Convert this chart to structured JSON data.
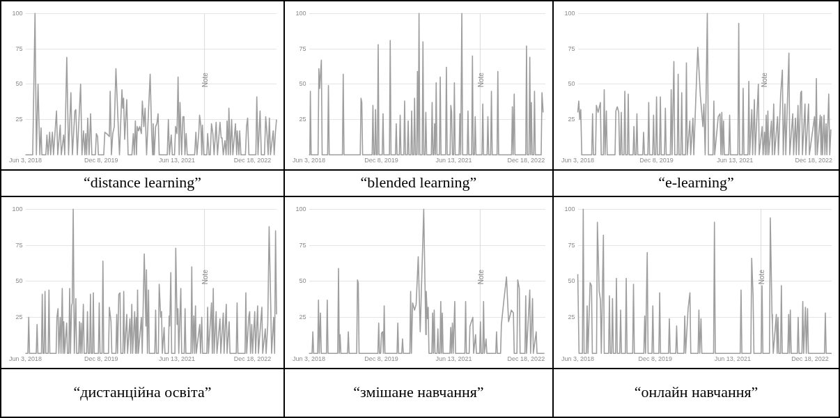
{
  "chart_data": [
    {
      "type": "line",
      "title": "“distance learning”",
      "color": "#9e9e9e",
      "marker": "none",
      "grid": "y",
      "xlim": [
        "2018-06-03",
        "2023-06-11"
      ],
      "ylim": [
        0,
        100
      ],
      "yticks": [
        25,
        50,
        75,
        100
      ],
      "xticks": [
        {
          "value": "2018-06-03",
          "label": "Jun 3, 2018"
        },
        {
          "value": "2019-12-08",
          "label": "Dec 8, 2019"
        },
        {
          "value": "2021-06-13",
          "label": "Jun 13, 2021"
        },
        {
          "value": "2022-12-18",
          "label": "Dec 18, 2022"
        }
      ],
      "ref_lines": [
        {
          "axis": "x",
          "value": "2022-01-01",
          "label": "Note"
        }
      ],
      "x": [
        "2018-06-03",
        "2018-07-26",
        "2018-08-12",
        "2018-08-22",
        "2018-09-03",
        "2018-09-16",
        "2018-09-25",
        "2018-10-01",
        "2018-10-30",
        "2018-11-07",
        "2018-11-15",
        "2018-11-27",
        "2018-12-04",
        "2018-12-17",
        "2018-12-25",
        "2019-01-16",
        "2019-01-25",
        "2019-02-12",
        "2019-02-20",
        "2019-03-09",
        "2019-03-17",
        "2019-04-01",
        "2019-04-14",
        "2019-05-01",
        "2019-05-12",
        "2019-05-30",
        "2019-06-06",
        "2019-06-17",
        "2019-07-11",
        "2019-07-21",
        "2019-08-01",
        "2019-08-11",
        "2019-08-17",
        "2019-08-24",
        "2019-09-01",
        "2019-09-11",
        "2019-09-22",
        "2019-10-01",
        "2019-10-27",
        "2019-11-03",
        "2019-11-12",
        "2019-11-18",
        "2019-12-27",
        "2020-01-04",
        "2020-01-17",
        "2020-02-06",
        "2020-02-12",
        "2020-02-21",
        "2020-03-02",
        "2020-03-13",
        "2020-03-25",
        "2020-04-11",
        "2020-04-20",
        "2020-05-08",
        "2020-05-14",
        "2020-05-20",
        "2020-05-28",
        "2020-06-12",
        "2020-06-22",
        "2020-07-20",
        "2020-07-30",
        "2020-08-06",
        "2020-08-14",
        "2020-08-22",
        "2020-08-28",
        "2020-09-06",
        "2020-09-15",
        "2020-09-27",
        "2020-10-04",
        "2020-10-15",
        "2020-10-24",
        "2020-11-04",
        "2020-11-30",
        "2020-12-11",
        "2020-12-18",
        "2020-12-22",
        "2020-12-30",
        "2021-01-09",
        "2021-01-18",
        "2021-01-27",
        "2021-02-04",
        "2021-04-04",
        "2021-04-12",
        "2021-04-20",
        "2021-05-03",
        "2021-05-11",
        "2021-05-27",
        "2021-06-04",
        "2021-06-14",
        "2021-06-22",
        "2021-06-30",
        "2021-07-06",
        "2021-07-18",
        "2021-07-27",
        "2021-08-04",
        "2021-08-11",
        "2021-08-20",
        "2021-08-28",
        "2021-10-21",
        "2021-10-30",
        "2021-11-07",
        "2021-11-20",
        "2021-11-26",
        "2021-12-06",
        "2021-12-12",
        "2021-12-17",
        "2021-12-27",
        "2022-01-18",
        "2022-01-24",
        "2022-02-03",
        "2022-02-12",
        "2022-02-21",
        "2022-03-03",
        "2022-03-12",
        "2022-03-27",
        "2022-04-06",
        "2022-04-24",
        "2022-05-03",
        "2022-05-09",
        "2022-05-18",
        "2022-05-30",
        "2022-06-08",
        "2022-06-15",
        "2022-06-24",
        "2022-06-28",
        "2022-07-09",
        "2022-07-18",
        "2022-07-27",
        "2022-08-15",
        "2022-08-24",
        "2022-08-28",
        "2022-09-09",
        "2022-09-15",
        "2022-09-24",
        "2022-10-27",
        "2022-11-04",
        "2022-11-12",
        "2022-11-21",
        "2023-01-11",
        "2023-01-18",
        "2023-01-27",
        "2023-02-11",
        "2023-02-20",
        "2023-03-15",
        "2023-03-24",
        "2023-04-03",
        "2023-04-11",
        "2023-04-20",
        "2023-04-28",
        "2023-05-18",
        "2023-05-25",
        "2023-06-03",
        "2023-06-11"
      ],
      "values": [
        0,
        0,
        100,
        0,
        50,
        0,
        19,
        0,
        0,
        14,
        0,
        16,
        0,
        16,
        0,
        31,
        0,
        21,
        0,
        14,
        0,
        69,
        0,
        44,
        0,
        31,
        32,
        0,
        50,
        0,
        17,
        0,
        15,
        0,
        26,
        0,
        29,
        0,
        0,
        15,
        13,
        0,
        0,
        16,
        15,
        13,
        45,
        0,
        15,
        20,
        61,
        20,
        0,
        46,
        33,
        40,
        11,
        39,
        0,
        0,
        15,
        0,
        24,
        0,
        20,
        17,
        20,
        15,
        38,
        20,
        33,
        0,
        57,
        15,
        0,
        22,
        0,
        20,
        22,
        29,
        0,
        0,
        25,
        0,
        14,
        0,
        0,
        20,
        15,
        55,
        0,
        37,
        0,
        27,
        27,
        0,
        15,
        0,
        0,
        16,
        0,
        15,
        28,
        20,
        0,
        21,
        0,
        0,
        15,
        0,
        0,
        22,
        15,
        0,
        23,
        0,
        23,
        12,
        12,
        0,
        10,
        0,
        24,
        0,
        33,
        0,
        25,
        0,
        22,
        0,
        17,
        0,
        17,
        0,
        0,
        20,
        26,
        0,
        0,
        41,
        0,
        31,
        0,
        0,
        27,
        14,
        0,
        26,
        0,
        17,
        0,
        16,
        25
      ]
    },
    {
      "type": "line",
      "title": "“blended learning”",
      "color": "#9e9e9e",
      "marker": "none",
      "grid": "y",
      "xlim": [
        "2018-06-03",
        "2023-05-14"
      ],
      "ylim": [
        0,
        100
      ],
      "yticks": [
        25,
        50,
        75,
        100
      ],
      "xticks": [
        {
          "value": "2018-06-03",
          "label": "Jun 3, 2018"
        },
        {
          "value": "2019-12-08",
          "label": "Dec 8, 2019"
        },
        {
          "value": "2021-06-13",
          "label": "Jun 13, 2021"
        },
        {
          "value": "2022-12-18",
          "label": "Dec 18, 2022"
        }
      ],
      "ref_lines": [
        {
          "axis": "x",
          "value": "2022-01-01",
          "label": "Note"
        }
      ],
      "x": [
        "2018-06-03",
        "2018-06-10",
        "2018-06-14",
        "2018-06-20",
        "2018-08-12",
        "2018-08-18",
        "2018-08-24",
        "2018-09-06",
        "2018-09-12",
        "2018-10-24",
        "2018-10-30",
        "2018-11-05",
        "2019-02-14",
        "2019-02-20",
        "2019-02-26",
        "2019-06-30",
        "2019-07-06",
        "2019-07-12",
        "2019-07-18",
        "2019-09-29",
        "2019-10-05",
        "2019-10-11",
        "2019-10-19",
        "2019-10-25",
        "2019-10-31",
        "2019-11-08",
        "2019-11-14",
        "2019-11-20",
        "2019-12-15",
        "2019-12-21",
        "2019-12-27",
        "2020-02-08",
        "2020-02-14",
        "2020-02-20",
        "2020-03-25",
        "2020-03-31",
        "2020-04-06",
        "2020-04-24",
        "2020-04-30",
        "2020-05-06",
        "2020-05-28",
        "2020-06-03",
        "2020-06-09",
        "2020-06-24",
        "2020-06-30",
        "2020-07-06",
        "2020-07-21",
        "2020-07-27",
        "2020-08-02",
        "2020-08-12",
        "2020-08-18",
        "2020-08-24",
        "2020-09-03",
        "2020-09-09",
        "2020-09-15",
        "2020-09-21",
        "2020-09-27",
        "2020-10-15",
        "2020-10-21",
        "2020-10-27",
        "2020-11-06",
        "2020-11-12",
        "2020-11-18",
        "2020-12-24",
        "2020-12-30",
        "2021-01-05",
        "2021-01-12",
        "2021-01-18",
        "2021-01-24",
        "2021-01-30",
        "2021-02-05",
        "2021-02-24",
        "2021-03-02",
        "2021-03-08",
        "2021-04-12",
        "2021-04-18",
        "2021-04-24",
        "2021-05-16",
        "2021-05-22",
        "2021-05-28",
        "2021-06-03",
        "2021-06-12",
        "2021-06-18",
        "2021-06-24",
        "2021-07-24",
        "2021-07-30",
        "2021-08-05",
        "2021-08-14",
        "2021-08-20",
        "2021-09-24",
        "2021-09-30",
        "2021-10-06",
        "2021-10-28",
        "2021-11-03",
        "2021-11-09",
        "2021-11-18",
        "2021-11-24",
        "2021-11-30",
        "2022-01-15",
        "2022-01-21",
        "2022-01-27",
        "2022-02-23",
        "2022-03-01",
        "2022-03-07",
        "2022-03-22",
        "2022-03-28",
        "2022-04-03",
        "2022-05-10",
        "2022-05-16",
        "2022-05-22",
        "2022-08-29",
        "2022-09-04",
        "2022-09-10",
        "2022-09-18",
        "2022-09-24",
        "2022-12-15",
        "2022-12-21",
        "2022-12-27",
        "2023-01-09",
        "2023-01-15",
        "2023-01-21",
        "2023-01-27",
        "2023-02-02",
        "2023-02-14",
        "2023-02-20",
        "2023-02-26",
        "2023-04-12",
        "2023-04-18",
        "2023-04-27"
      ],
      "values": [
        0,
        0,
        45,
        0,
        0,
        61,
        47,
        67,
        0,
        0,
        49,
        0,
        0,
        57,
        0,
        0,
        40,
        37,
        0,
        0,
        35,
        0,
        0,
        32,
        0,
        0,
        78,
        0,
        0,
        29,
        0,
        0,
        81,
        0,
        0,
        22,
        0,
        0,
        28,
        0,
        0,
        38,
        0,
        0,
        24,
        0,
        0,
        31,
        0,
        0,
        40,
        0,
        0,
        59,
        0,
        100,
        0,
        0,
        80,
        0,
        0,
        30,
        0,
        0,
        37,
        0,
        0,
        22,
        0,
        51,
        0,
        0,
        55,
        0,
        0,
        62,
        0,
        0,
        35,
        30,
        0,
        0,
        51,
        0,
        0,
        29,
        0,
        100,
        0,
        0,
        31,
        0,
        0,
        70,
        0,
        0,
        27,
        0,
        0,
        36,
        0,
        0,
        27,
        0,
        0,
        45,
        0,
        0,
        59,
        0,
        0,
        34,
        0,
        43,
        0,
        0,
        77,
        0,
        0,
        69,
        0,
        37,
        0,
        0,
        45,
        0,
        0,
        44,
        30
      ]
    },
    {
      "type": "line",
      "title": "“e-learning”",
      "color": "#9e9e9e",
      "marker": "none",
      "grid": "y",
      "xlim": [
        "2018-06-03",
        "2023-04-23"
      ],
      "ylim": [
        0,
        100
      ],
      "yticks": [
        25,
        50,
        75,
        100
      ],
      "xticks": [
        {
          "value": "2018-06-03",
          "label": "Jun 3, 2018"
        },
        {
          "value": "2019-12-08",
          "label": "Dec 8, 2019"
        },
        {
          "value": "2021-06-13",
          "label": "Jun 13, 2021"
        },
        {
          "value": "2022-12-18",
          "label": "Dec 18, 2022"
        }
      ],
      "ref_lines": [
        {
          "axis": "x",
          "value": "2022-01-01",
          "label": "Note"
        }
      ],
      "x": [
        "2018-06-03",
        "2018-06-10",
        "2018-06-17",
        "2018-06-24",
        "2018-07-01",
        "2018-09-09",
        "2018-09-15",
        "2018-09-21",
        "2018-10-06",
        "2018-10-12",
        "2018-10-24",
        "2018-11-09",
        "2018-11-15",
        "2018-11-30",
        "2018-12-06",
        "2018-12-12",
        "2018-12-21",
        "2018-12-27",
        "2019-02-20",
        "2019-02-26",
        "2019-03-08",
        "2019-03-18",
        "2019-03-24",
        "2019-03-30",
        "2019-04-05",
        "2019-04-11",
        "2019-04-24",
        "2019-04-30",
        "2019-05-06",
        "2019-05-18",
        "2019-05-24",
        "2019-05-30",
        "2019-06-27",
        "2019-07-03",
        "2019-07-09",
        "2019-07-18",
        "2019-07-24",
        "2019-07-30",
        "2019-09-03",
        "2019-09-09",
        "2019-09-15",
        "2019-10-09",
        "2019-10-15",
        "2019-10-21",
        "2019-11-12",
        "2019-11-18",
        "2019-11-24",
        "2019-12-03",
        "2019-12-09",
        "2019-12-15",
        "2019-12-30",
        "2020-01-05",
        "2020-01-11",
        "2020-02-03",
        "2020-02-09",
        "2020-02-15",
        "2020-03-15",
        "2020-03-21",
        "2020-03-27",
        "2020-04-09",
        "2020-04-15",
        "2020-05-03",
        "2020-05-09",
        "2020-05-15",
        "2020-05-28",
        "2020-06-03",
        "2020-06-09",
        "2020-06-30",
        "2020-07-06",
        "2020-07-12",
        "2020-07-30",
        "2020-08-05",
        "2020-08-21",
        "2020-08-27",
        "2020-09-12",
        "2020-09-24",
        "2020-10-12",
        "2020-10-30",
        "2020-11-06",
        "2020-11-15",
        "2020-11-30",
        "2020-12-08",
        "2021-01-09",
        "2021-01-15",
        "2021-01-21",
        "2021-02-15",
        "2021-02-27",
        "2021-03-06",
        "2021-03-12",
        "2021-03-18",
        "2021-03-24",
        "2021-03-30",
        "2021-04-30",
        "2021-05-06",
        "2021-05-12",
        "2021-07-03",
        "2021-07-09",
        "2021-07-15",
        "2021-08-03",
        "2021-08-09",
        "2021-08-15",
        "2021-09-12",
        "2021-09-18",
        "2021-09-24",
        "2021-10-09",
        "2021-10-15",
        "2021-10-27",
        "2021-11-02",
        "2021-11-24",
        "2021-11-30",
        "2021-12-21",
        "2021-12-27",
        "2022-01-06",
        "2022-01-12",
        "2022-01-18",
        "2022-01-24",
        "2022-01-30",
        "2022-02-05",
        "2022-02-24",
        "2022-03-02",
        "2022-03-12",
        "2022-03-18",
        "2022-04-08",
        "2022-04-14",
        "2022-04-30",
        "2022-05-12",
        "2022-05-18",
        "2022-05-30",
        "2022-06-05",
        "2022-06-27",
        "2022-07-03",
        "2022-07-24",
        "2022-07-30",
        "2022-08-12",
        "2022-08-18",
        "2022-08-30",
        "2022-09-05",
        "2022-09-18",
        "2022-09-24",
        "2022-09-30",
        "2022-10-18",
        "2022-10-24",
        "2022-11-12",
        "2022-11-18",
        "2022-12-24",
        "2022-12-30",
        "2023-01-06",
        "2023-01-12",
        "2023-02-02",
        "2023-02-08",
        "2023-02-12",
        "2023-02-18",
        "2023-03-01",
        "2023-03-07",
        "2023-03-15",
        "2023-03-21",
        "2023-04-03",
        "2023-04-10",
        "2023-04-18"
      ],
      "values": [
        30,
        38,
        25,
        32,
        0,
        0,
        29,
        0,
        0,
        35,
        30,
        37,
        0,
        0,
        46,
        0,
        31,
        0,
        0,
        31,
        34,
        30,
        0,
        0,
        30,
        0,
        0,
        45,
        0,
        0,
        43,
        0,
        0,
        20,
        0,
        0,
        29,
        0,
        0,
        16,
        0,
        0,
        37,
        0,
        0,
        28,
        0,
        0,
        41,
        0,
        0,
        41,
        0,
        0,
        33,
        0,
        0,
        46,
        0,
        66,
        0,
        0,
        57,
        0,
        0,
        44,
        0,
        0,
        65,
        0,
        24,
        0,
        26,
        0,
        45,
        76,
        42,
        20,
        36,
        0,
        100,
        0,
        0,
        38,
        0,
        27,
        29,
        0,
        30,
        0,
        24,
        0,
        0,
        28,
        0,
        0,
        93,
        0,
        0,
        47,
        0,
        0,
        52,
        0,
        32,
        0,
        39,
        0,
        50,
        0,
        20,
        0,
        16,
        0,
        28,
        0,
        31,
        0,
        24,
        0,
        36,
        0,
        27,
        0,
        43,
        60,
        0,
        36,
        0,
        72,
        0,
        29,
        0,
        26,
        0,
        35,
        0,
        44,
        45,
        0,
        36,
        0,
        36,
        0,
        27,
        0,
        54,
        0,
        28,
        0,
        27,
        0,
        28,
        0,
        22,
        0,
        43,
        0,
        18
      ]
    },
    {
      "type": "line",
      "title": "“дистанційна освіта”",
      "color": "#9e9e9e",
      "marker": "none",
      "grid": "y",
      "xlim": [
        "2018-06-03",
        "2023-06-11"
      ],
      "ylim": [
        0,
        100
      ],
      "yticks": [
        25,
        50,
        75,
        100
      ],
      "xticks": [
        {
          "value": "2018-06-03",
          "label": "Jun 3, 2018"
        },
        {
          "value": "2019-12-08",
          "label": "Dec 8, 2019"
        },
        {
          "value": "2021-06-13",
          "label": "Jun 13, 2021"
        },
        {
          "value": "2022-12-18",
          "label": "Dec 18, 2022"
        }
      ],
      "ref_lines": [
        {
          "axis": "x",
          "value": "2022-01-01",
          "label": "Note"
        }
      ],
      "x": [
        "2018-06-03",
        "2018-06-21",
        "2018-06-27",
        "2018-07-03",
        "2018-08-21",
        "2018-08-27",
        "2018-09-02",
        "2018-09-28",
        "2018-10-04",
        "2018-10-10",
        "2018-10-18",
        "2018-10-24",
        "2018-10-30",
        "2018-11-16",
        "2018-11-22",
        "2018-11-28",
        "2019-01-13",
        "2019-01-19",
        "2019-01-27",
        "2019-02-02",
        "2019-02-12",
        "2019-02-18",
        "2019-02-27",
        "2019-03-05",
        "2019-03-10",
        "2019-03-16",
        "2019-03-31",
        "2019-04-06",
        "2019-04-16",
        "2019-04-22",
        "2019-04-28",
        "2019-05-06",
        "2019-05-11",
        "2019-05-18",
        "2019-05-26",
        "2019-06-06",
        "2019-06-12",
        "2019-06-27",
        "2019-07-03",
        "2019-07-09",
        "2019-07-15",
        "2019-07-21",
        "2019-07-31",
        "2019-08-06",
        "2019-08-24",
        "2019-08-30",
        "2019-09-05",
        "2019-09-15",
        "2019-09-21",
        "2019-09-27",
        "2019-10-06",
        "2019-10-12",
        "2019-10-18",
        "2019-11-18",
        "2019-11-24",
        "2019-11-30",
        "2019-12-15",
        "2019-12-21",
        "2019-12-27",
        "2020-01-31",
        "2020-02-06",
        "2020-02-18",
        "2020-02-24",
        "2020-03-25",
        "2020-03-31",
        "2020-04-06",
        "2020-04-15",
        "2020-04-24",
        "2020-04-30",
        "2020-05-15",
        "2020-05-21",
        "2020-05-27",
        "2020-06-12",
        "2020-06-18",
        "2020-07-05",
        "2020-07-11",
        "2020-07-19",
        "2020-07-25",
        "2020-08-09",
        "2020-08-15",
        "2020-08-21",
        "2020-08-25",
        "2020-08-30",
        "2020-09-05",
        "2020-09-27",
        "2020-10-03",
        "2020-10-18",
        "2020-10-30",
        "2020-11-03",
        "2020-11-10",
        "2020-11-18",
        "2020-11-24",
        "2021-01-03",
        "2021-01-09",
        "2021-01-15",
        "2021-01-29",
        "2021-02-04",
        "2021-02-15",
        "2021-02-21",
        "2021-02-27",
        "2021-03-12",
        "2021-03-18",
        "2021-04-12",
        "2021-04-18",
        "2021-04-22",
        "2021-04-30",
        "2021-05-06",
        "2021-05-30",
        "2021-06-05",
        "2021-06-15",
        "2021-06-21",
        "2021-06-27",
        "2021-07-12",
        "2021-07-18",
        "2021-08-06",
        "2021-08-12",
        "2021-08-18",
        "2021-09-24",
        "2021-09-30",
        "2021-10-06",
        "2021-10-15",
        "2021-10-21",
        "2021-10-27",
        "2021-11-02",
        "2021-11-27",
        "2021-12-03",
        "2021-12-12",
        "2021-12-18",
        "2022-01-18",
        "2022-01-24",
        "2022-01-30",
        "2022-02-21",
        "2022-02-27",
        "2022-03-06",
        "2022-03-12",
        "2022-03-27",
        "2022-04-02",
        "2022-04-24",
        "2022-04-30",
        "2022-05-18",
        "2022-05-24",
        "2022-06-09",
        "2022-06-15",
        "2022-06-30",
        "2022-07-06",
        "2022-08-21",
        "2022-08-27",
        "2022-09-02",
        "2022-10-24",
        "2022-10-30",
        "2022-11-05",
        "2022-11-21",
        "2022-11-27",
        "2022-12-03",
        "2022-12-12",
        "2022-12-18",
        "2023-01-03",
        "2023-01-09",
        "2023-01-24",
        "2023-01-30",
        "2023-02-24",
        "2023-03-02",
        "2023-03-21",
        "2023-03-27",
        "2023-04-08",
        "2023-04-18",
        "2023-04-30",
        "2023-05-06",
        "2023-05-21",
        "2023-05-28",
        "2023-06-04",
        "2023-06-11"
      ],
      "values": [
        0,
        0,
        25,
        0,
        0,
        20,
        0,
        0,
        41,
        0,
        0,
        43,
        0,
        0,
        44,
        0,
        0,
        25,
        31,
        0,
        25,
        0,
        45,
        0,
        22,
        0,
        21,
        0,
        0,
        45,
        0,
        33,
        35,
        100,
        0,
        38,
        0,
        0,
        22,
        0,
        21,
        0,
        34,
        0,
        0,
        29,
        0,
        0,
        41,
        0,
        0,
        42,
        0,
        0,
        35,
        0,
        0,
        64,
        0,
        0,
        32,
        22,
        0,
        0,
        27,
        0,
        41,
        42,
        0,
        0,
        43,
        0,
        27,
        0,
        24,
        0,
        34,
        0,
        29,
        0,
        25,
        0,
        44,
        0,
        25,
        0,
        69,
        19,
        58,
        0,
        44,
        0,
        0,
        30,
        0,
        0,
        48,
        25,
        29,
        0,
        18,
        0,
        0,
        26,
        19,
        56,
        0,
        0,
        73,
        20,
        31,
        0,
        45,
        0,
        0,
        31,
        0,
        0,
        60,
        0,
        26,
        0,
        33,
        0,
        20,
        0,
        25,
        0,
        0,
        32,
        0,
        35,
        0,
        45,
        0,
        29,
        0,
        24,
        0,
        28,
        0,
        34,
        0,
        22,
        0,
        0,
        35,
        0,
        0,
        42,
        0,
        26,
        29,
        0,
        20,
        0,
        29,
        0,
        33,
        0,
        32,
        0,
        17,
        0,
        20,
        88,
        32,
        0,
        25,
        0,
        85,
        27
      ]
    },
    {
      "type": "line",
      "title": "“змішане навчання”",
      "color": "#9e9e9e",
      "marker": "none",
      "grid": "y",
      "xlim": [
        "2018-06-03",
        "2023-05-14"
      ],
      "ylim": [
        0,
        100
      ],
      "yticks": [
        25,
        50,
        75,
        100
      ],
      "xticks": [
        {
          "value": "2018-06-03",
          "label": "Jun 3, 2018"
        },
        {
          "value": "2019-12-08",
          "label": "Dec 8, 2019"
        },
        {
          "value": "2021-06-13",
          "label": "Jun 13, 2021"
        },
        {
          "value": "2022-12-18",
          "label": "Dec 18, 2022"
        }
      ],
      "ref_lines": [
        {
          "axis": "x",
          "value": "2022-01-01",
          "label": "Note"
        }
      ],
      "x": [
        "2018-06-03",
        "2018-06-27",
        "2018-07-03",
        "2018-07-09",
        "2018-08-09",
        "2018-08-15",
        "2018-08-21",
        "2018-08-30",
        "2018-09-05",
        "2018-10-15",
        "2018-10-21",
        "2018-10-27",
        "2019-01-09",
        "2019-01-15",
        "2019-01-21",
        "2019-01-27",
        "2019-02-02",
        "2019-03-25",
        "2019-03-31",
        "2019-04-06",
        "2019-06-03",
        "2019-06-09",
        "2019-06-15",
        "2019-06-21",
        "2019-11-12",
        "2019-11-18",
        "2019-11-24",
        "2019-12-03",
        "2019-12-09",
        "2019-12-18",
        "2019-12-24",
        "2019-12-30",
        "2020-01-05",
        "2020-04-06",
        "2020-04-12",
        "2020-04-18",
        "2020-05-12",
        "2020-05-18",
        "2020-05-24",
        "2020-07-13",
        "2020-07-19",
        "2020-07-25",
        "2020-08-03",
        "2020-08-18",
        "2020-08-30",
        "2020-09-15",
        "2020-09-30",
        "2020-10-27",
        "2020-11-12",
        "2020-11-15",
        "2020-11-24",
        "2020-11-30",
        "2020-12-06",
        "2020-12-28",
        "2021-01-03",
        "2021-01-09",
        "2021-01-15",
        "2021-01-21",
        "2021-02-06",
        "2021-02-12",
        "2021-02-18",
        "2021-02-28",
        "2021-03-06",
        "2021-03-12",
        "2021-03-18",
        "2021-03-24",
        "2021-05-15",
        "2021-05-21",
        "2021-05-27",
        "2021-06-03",
        "2021-06-09",
        "2021-06-21",
        "2021-06-27",
        "2021-09-06",
        "2021-09-12",
        "2021-09-18",
        "2021-10-09",
        "2021-10-15",
        "2021-11-06",
        "2021-11-12",
        "2021-11-27",
        "2021-12-03",
        "2021-12-28",
        "2022-01-03",
        "2022-01-09",
        "2022-01-21",
        "2022-01-27",
        "2022-02-02",
        "2022-02-15",
        "2022-02-21",
        "2022-04-30",
        "2022-05-06",
        "2022-05-12",
        "2022-06-06",
        "2022-06-12",
        "2022-06-30",
        "2022-07-21",
        "2022-08-06",
        "2022-08-27",
        "2022-09-12",
        "2022-09-18",
        "2022-10-09",
        "2022-10-15",
        "2022-10-27",
        "2022-11-02",
        "2022-12-09",
        "2022-12-15",
        "2022-12-21",
        "2023-01-15",
        "2023-01-21",
        "2023-02-05",
        "2023-02-11",
        "2023-03-05",
        "2023-03-11",
        "2023-05-07"
      ],
      "values": [
        0,
        0,
        15,
        0,
        0,
        37,
        0,
        28,
        0,
        0,
        37,
        0,
        0,
        59,
        0,
        13,
        0,
        0,
        15,
        0,
        0,
        51,
        49,
        0,
        0,
        21,
        0,
        0,
        14,
        15,
        0,
        33,
        0,
        0,
        21,
        0,
        0,
        10,
        0,
        0,
        43,
        0,
        35,
        30,
        34,
        67,
        15,
        100,
        13,
        43,
        24,
        32,
        0,
        0,
        28,
        0,
        30,
        0,
        0,
        17,
        0,
        0,
        36,
        0,
        28,
        0,
        0,
        18,
        0,
        21,
        0,
        36,
        0,
        0,
        36,
        0,
        0,
        19,
        25,
        0,
        13,
        0,
        0,
        22,
        0,
        0,
        36,
        0,
        10,
        0,
        0,
        15,
        0,
        0,
        20,
        36,
        53,
        22,
        30,
        28,
        0,
        0,
        51,
        45,
        0,
        0,
        40,
        0,
        44,
        0,
        38,
        0,
        15,
        0,
        0
      ]
    },
    {
      "type": "line",
      "title": "“онлайн навчання”",
      "color": "#9e9e9e",
      "marker": "none",
      "grid": "y",
      "xlim": [
        "2018-06-03",
        "2023-05-21"
      ],
      "ylim": [
        0,
        100
      ],
      "yticks": [
        25,
        50,
        75,
        100
      ],
      "xticks": [
        {
          "value": "2018-06-03",
          "label": "Jun 3, 2018"
        },
        {
          "value": "2019-12-08",
          "label": "Dec 8, 2019"
        },
        {
          "value": "2021-06-13",
          "label": "Jun 13, 2021"
        },
        {
          "value": "2022-12-18",
          "label": "Dec 18, 2022"
        }
      ],
      "ref_lines": [
        {
          "axis": "x",
          "value": "2022-01-01",
          "label": "Note"
        }
      ],
      "x": [
        "2018-06-03",
        "2018-06-12",
        "2018-07-06",
        "2018-07-12",
        "2018-07-18",
        "2018-08-03",
        "2018-08-09",
        "2018-08-15",
        "2018-08-30",
        "2018-09-09",
        "2018-09-15",
        "2018-10-15",
        "2018-10-21",
        "2018-11-03",
        "2018-11-12",
        "2018-11-18",
        "2018-12-03",
        "2018-12-09",
        "2019-01-09",
        "2019-01-15",
        "2019-01-21",
        "2019-01-31",
        "2019-02-06",
        "2019-02-12",
        "2019-02-28",
        "2019-03-06",
        "2019-03-12",
        "2019-03-30",
        "2019-04-05",
        "2019-04-11",
        "2019-05-09",
        "2019-05-15",
        "2019-05-21",
        "2019-06-30",
        "2019-07-06",
        "2019-07-12",
        "2019-09-18",
        "2019-09-24",
        "2019-09-30",
        "2019-10-12",
        "2019-10-18",
        "2019-11-15",
        "2019-11-21",
        "2019-11-27",
        "2020-01-03",
        "2020-01-09",
        "2020-01-15",
        "2020-03-12",
        "2020-03-18",
        "2020-03-24",
        "2020-05-03",
        "2020-05-09",
        "2020-05-15",
        "2020-06-30",
        "2020-07-06",
        "2020-07-12",
        "2020-07-30",
        "2020-08-12",
        "2020-08-18",
        "2020-10-09",
        "2020-10-15",
        "2020-10-21",
        "2020-10-30",
        "2020-11-05",
        "2021-01-28",
        "2021-02-03",
        "2021-02-09",
        "2021-08-06",
        "2021-08-12",
        "2021-08-18",
        "2021-10-21",
        "2021-10-27",
        "2021-11-06",
        "2021-11-12",
        "2022-01-03",
        "2022-01-09",
        "2022-01-15",
        "2022-03-03",
        "2022-03-09",
        "2022-03-21",
        "2022-03-24",
        "2022-03-30",
        "2022-04-21",
        "2022-04-27",
        "2022-05-03",
        "2022-05-09",
        "2022-05-21",
        "2022-05-27",
        "2022-06-02",
        "2022-07-12",
        "2022-07-18",
        "2022-07-24",
        "2022-07-30",
        "2022-08-05",
        "2022-09-18",
        "2022-09-24",
        "2022-09-30",
        "2022-10-21",
        "2022-10-27",
        "2022-11-02",
        "2022-11-15",
        "2022-11-21",
        "2022-11-30",
        "2022-12-06",
        "2023-03-31",
        "2023-04-06",
        "2023-04-12",
        "2023-05-21"
      ],
      "values": [
        55,
        0,
        0,
        100,
        0,
        0,
        33,
        0,
        49,
        47,
        0,
        0,
        91,
        43,
        37,
        0,
        82,
        0,
        0,
        40,
        0,
        0,
        38,
        0,
        0,
        52,
        0,
        0,
        30,
        0,
        0,
        52,
        0,
        0,
        48,
        0,
        0,
        26,
        0,
        70,
        0,
        0,
        33,
        0,
        0,
        42,
        0,
        0,
        24,
        0,
        0,
        19,
        0,
        0,
        26,
        0,
        31,
        42,
        0,
        0,
        30,
        0,
        24,
        0,
        0,
        91,
        0,
        0,
        44,
        0,
        0,
        66,
        40,
        0,
        0,
        47,
        0,
        0,
        94,
        27,
        20,
        0,
        27,
        0,
        25,
        0,
        0,
        47,
        0,
        0,
        27,
        0,
        30,
        0,
        0,
        25,
        0,
        0,
        36,
        0,
        32,
        0,
        31,
        0,
        0,
        28,
        0,
        0
      ]
    }
  ]
}
